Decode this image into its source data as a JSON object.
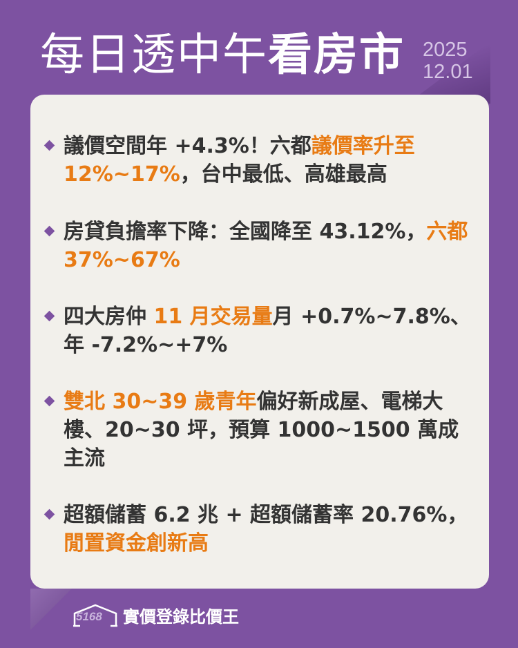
{
  "header": {
    "title_light": "每日透中午",
    "title_bold": "看房市",
    "date_year": "2025",
    "date_day": "12.01"
  },
  "colors": {
    "background": "#7d52a1",
    "highlight": "#e87b14",
    "card": "#f2f0eb",
    "text": "#333333"
  },
  "items": [
    {
      "segments": [
        {
          "text": "議價空間年 +4.3%！六都",
          "hl": false
        },
        {
          "text": "議價率升至 12%~17%",
          "hl": true
        },
        {
          "text": "，台中最低、高雄最高",
          "hl": false
        }
      ]
    },
    {
      "segments": [
        {
          "text": "房貸負擔率下降：全國降至 43.12%，",
          "hl": false
        },
        {
          "text": "六都 37%~67%",
          "hl": true
        }
      ]
    },
    {
      "segments": [
        {
          "text": "四大房仲 ",
          "hl": false
        },
        {
          "text": "11 月交易量",
          "hl": true
        },
        {
          "text": "月 +0.7%~7.8%、年 -7.2%~+7%",
          "hl": false
        }
      ]
    },
    {
      "segments": [
        {
          "text": "雙北 30~39 歲青年",
          "hl": true
        },
        {
          "text": "偏好新成屋、電梯大樓、20~30 坪，預算 1000~1500 萬成主流",
          "hl": false
        }
      ]
    },
    {
      "segments": [
        {
          "text": "超額儲蓄 6.2 兆 + 超額儲蓄率 20.76%，",
          "hl": false
        },
        {
          "text": "閒置資金創新高",
          "hl": true
        }
      ]
    }
  ],
  "footer": {
    "logo_text": "5168",
    "brand": "實價登錄比價王"
  }
}
